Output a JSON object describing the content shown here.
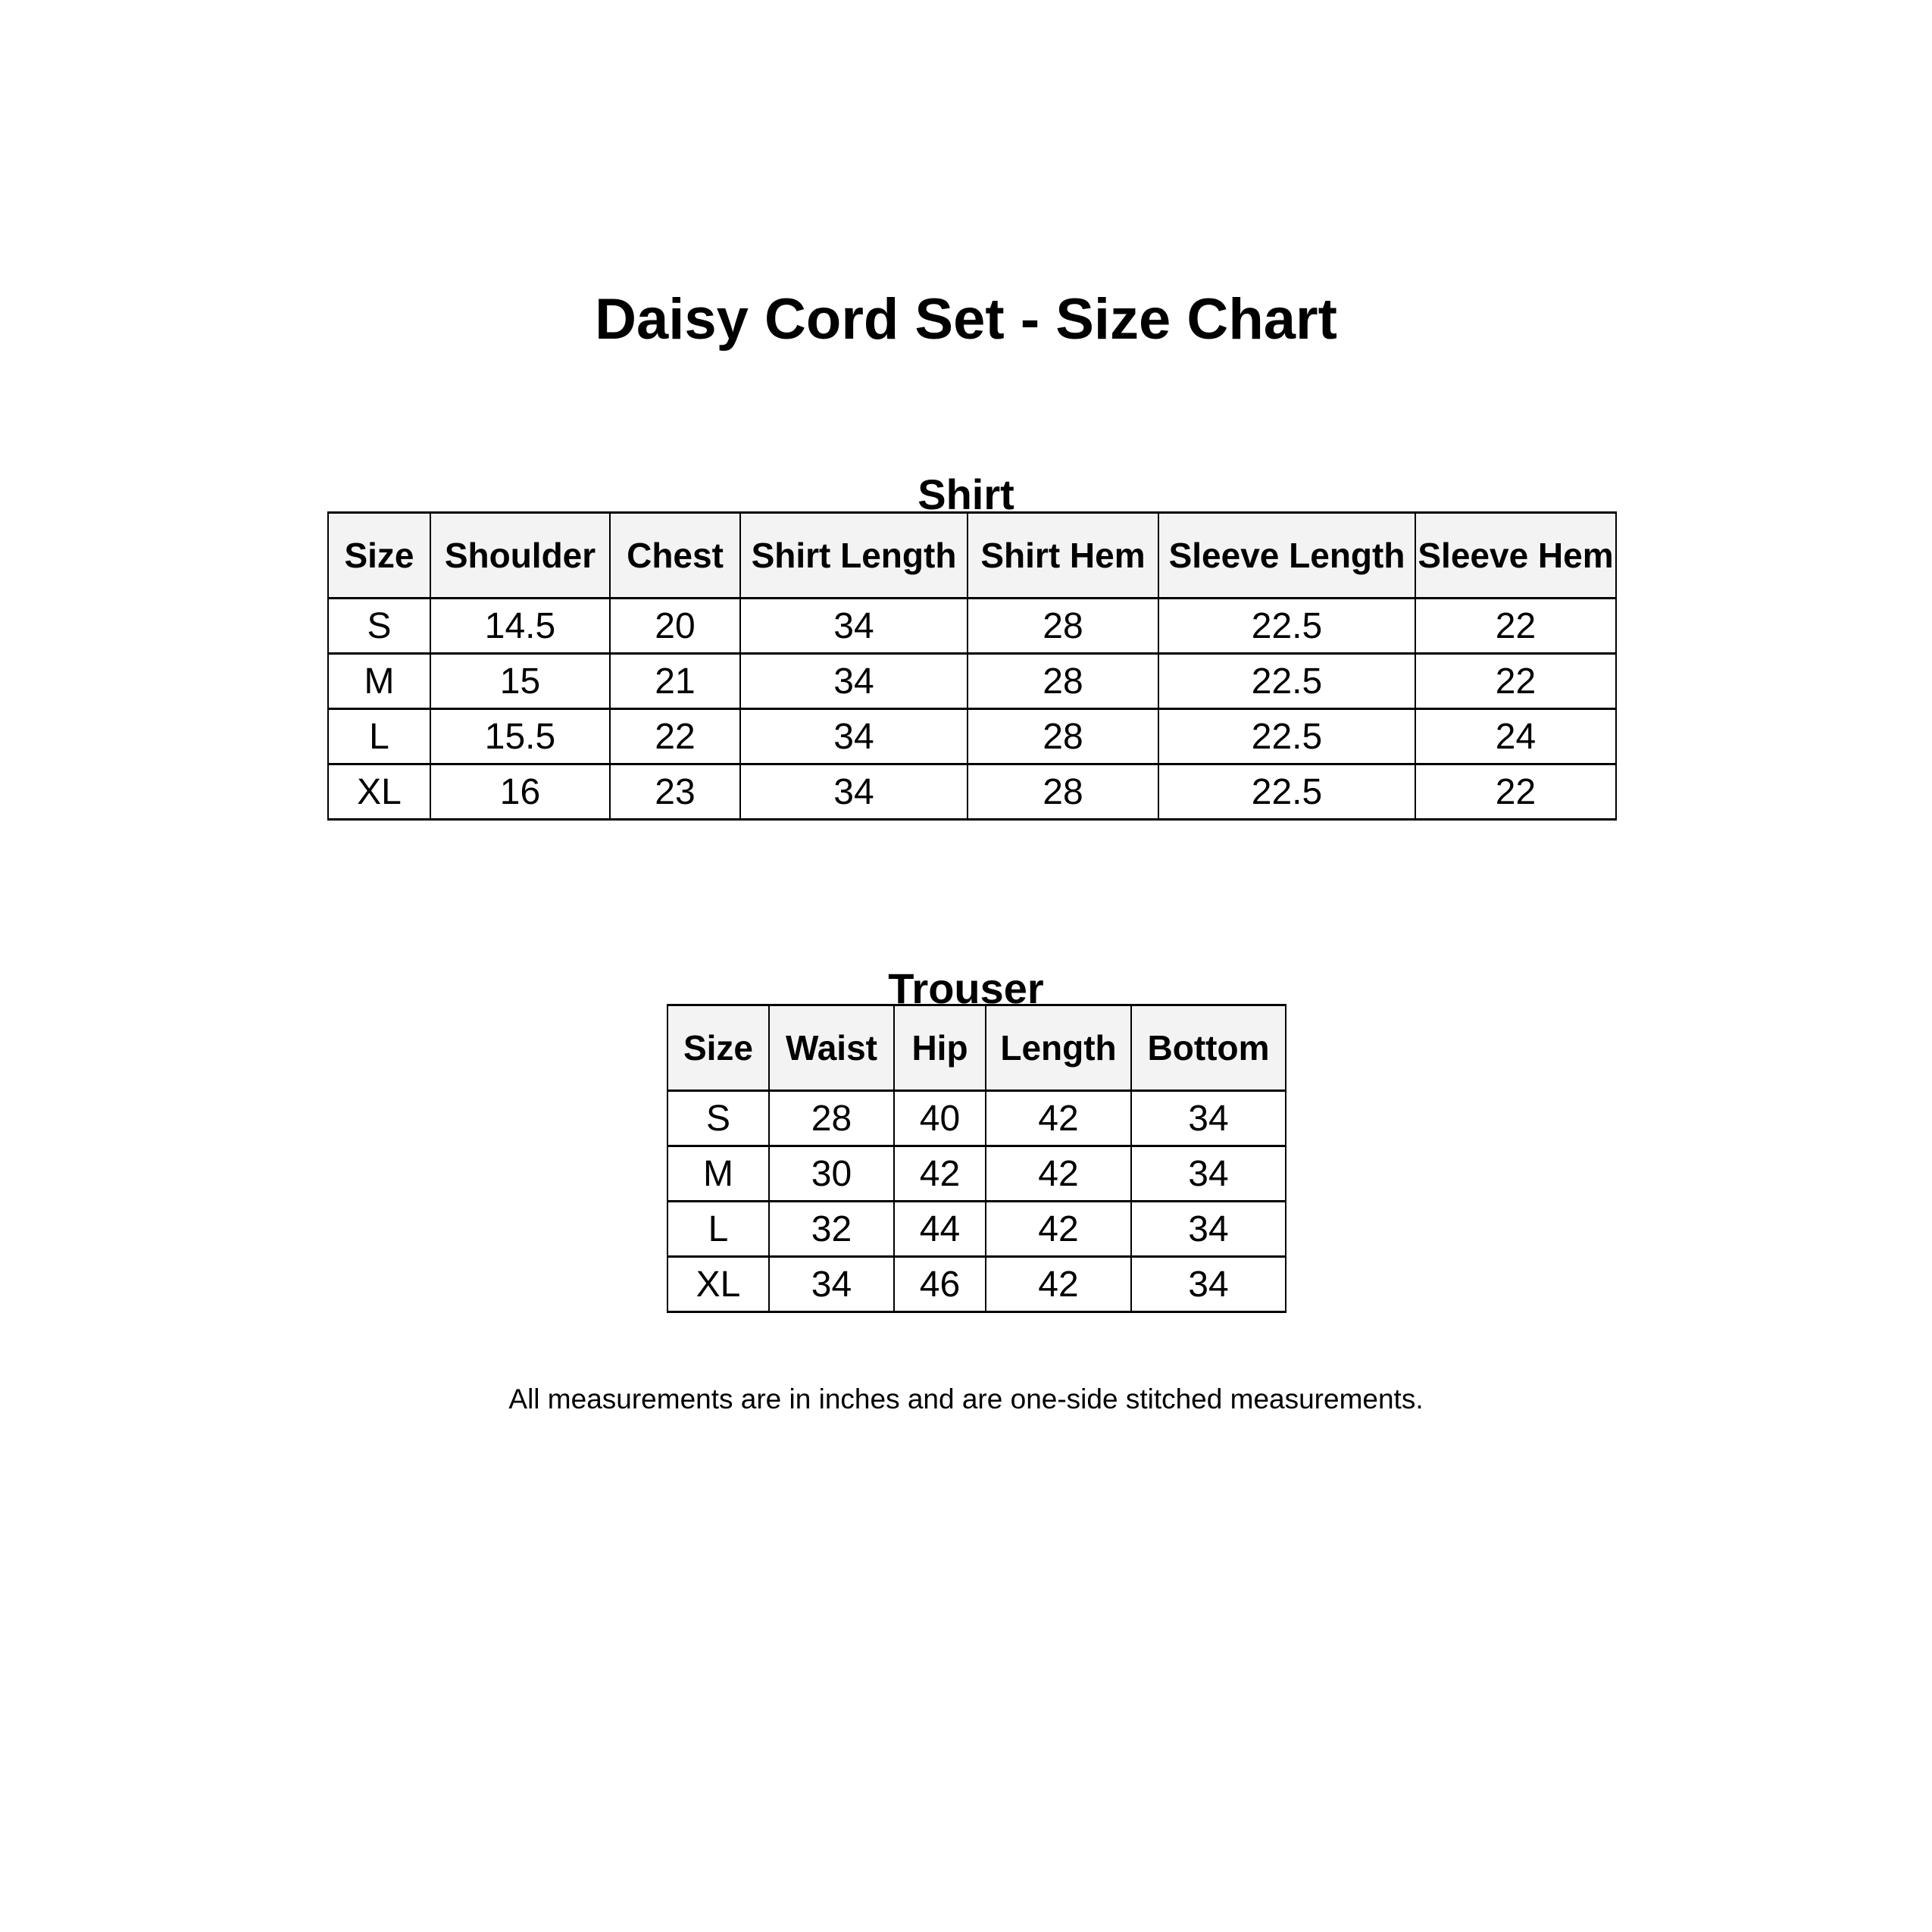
{
  "page": {
    "title": "Daisy Cord Set - Size Chart",
    "footer_note": "All measurements are in inches and are one-side stitched measurements."
  },
  "colors": {
    "background": "#ffffff",
    "header_bg": "#f3f3f3",
    "border": "#000000",
    "text": "#000000"
  },
  "shirt_table": {
    "heading": "Shirt",
    "columns": [
      "Size",
      "Shoulder",
      "Chest",
      "Shirt Length",
      "Shirt Hem",
      "Sleeve Length",
      "Sleeve Hem"
    ],
    "rows": [
      [
        "S",
        "14.5",
        "20",
        "34",
        "28",
        "22.5",
        "22"
      ],
      [
        "M",
        "15",
        "21",
        "34",
        "28",
        "22.5",
        "22"
      ],
      [
        "L",
        "15.5",
        "22",
        "34",
        "28",
        "22.5",
        "24"
      ],
      [
        "XL",
        "16",
        "23",
        "34",
        "28",
        "22.5",
        "22"
      ]
    ]
  },
  "trouser_table": {
    "heading": "Trouser",
    "columns": [
      "Size",
      "Waist",
      "Hip",
      "Length",
      "Bottom"
    ],
    "rows": [
      [
        "S",
        "28",
        "40",
        "42",
        "34"
      ],
      [
        "M",
        "30",
        "42",
        "42",
        "34"
      ],
      [
        "L",
        "32",
        "44",
        "42",
        "34"
      ],
      [
        "XL",
        "34",
        "46",
        "42",
        "34"
      ]
    ]
  }
}
